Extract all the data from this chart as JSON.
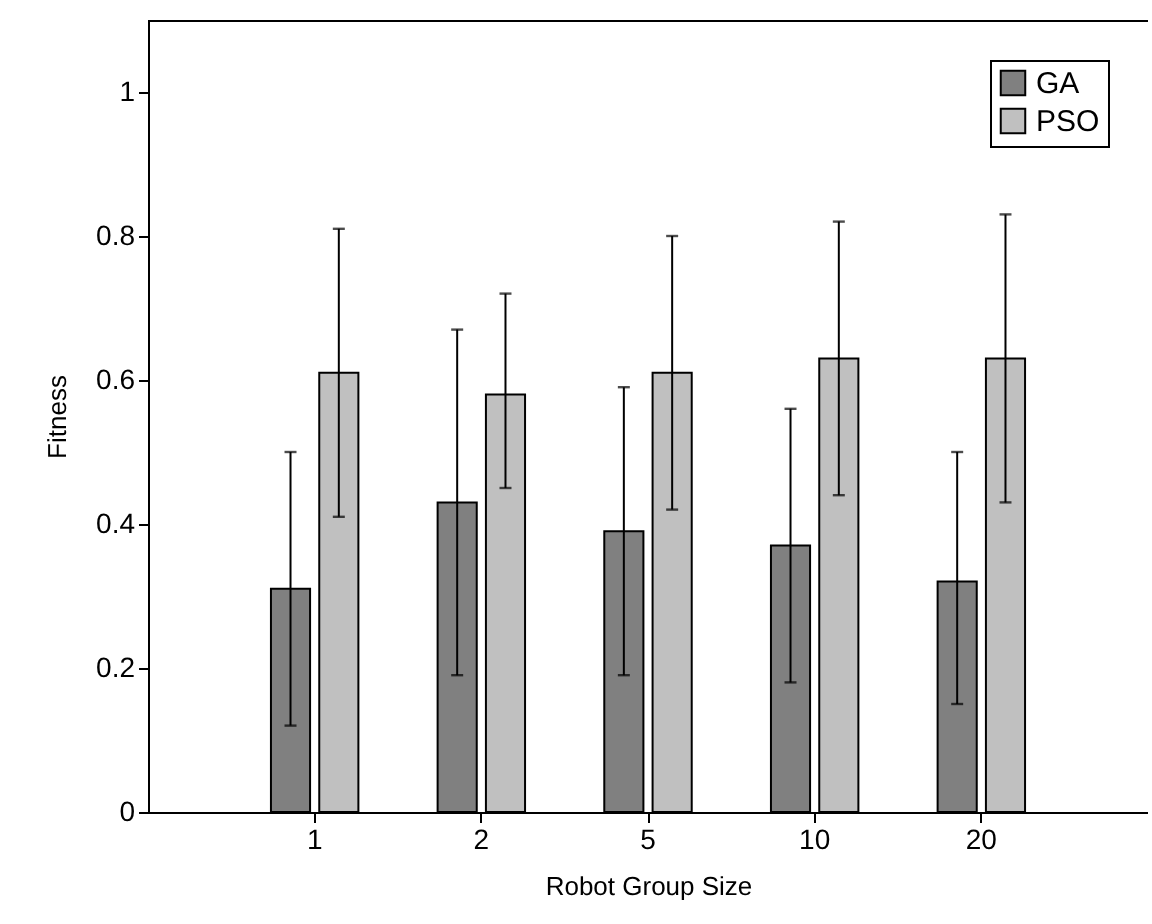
{
  "chart_data": {
    "type": "bar",
    "xlabel": "Robot Group Size",
    "ylabel": "Fitness",
    "categories": [
      "1",
      "2",
      "5",
      "10",
      "20"
    ],
    "series": [
      {
        "name": "GA",
        "color": "#808080",
        "values": [
          0.31,
          0.43,
          0.39,
          0.37,
          0.32
        ],
        "errors": [
          [
            0.12,
            0.5
          ],
          [
            0.19,
            0.67
          ],
          [
            0.19,
            0.59
          ],
          [
            0.18,
            0.56
          ],
          [
            0.15,
            0.5
          ]
        ]
      },
      {
        "name": "PSO",
        "color": "#c0c0c0",
        "values": [
          0.61,
          0.58,
          0.61,
          0.63,
          0.63
        ],
        "errors": [
          [
            0.41,
            0.81
          ],
          [
            0.45,
            0.72
          ],
          [
            0.42,
            0.8
          ],
          [
            0.44,
            0.82
          ],
          [
            0.43,
            0.83
          ]
        ]
      }
    ],
    "ylim": [
      0,
      1.1
    ],
    "yticks": [
      0,
      0.2,
      0.4,
      0.6,
      0.8,
      1
    ],
    "grid": false,
    "legend": "top right"
  }
}
